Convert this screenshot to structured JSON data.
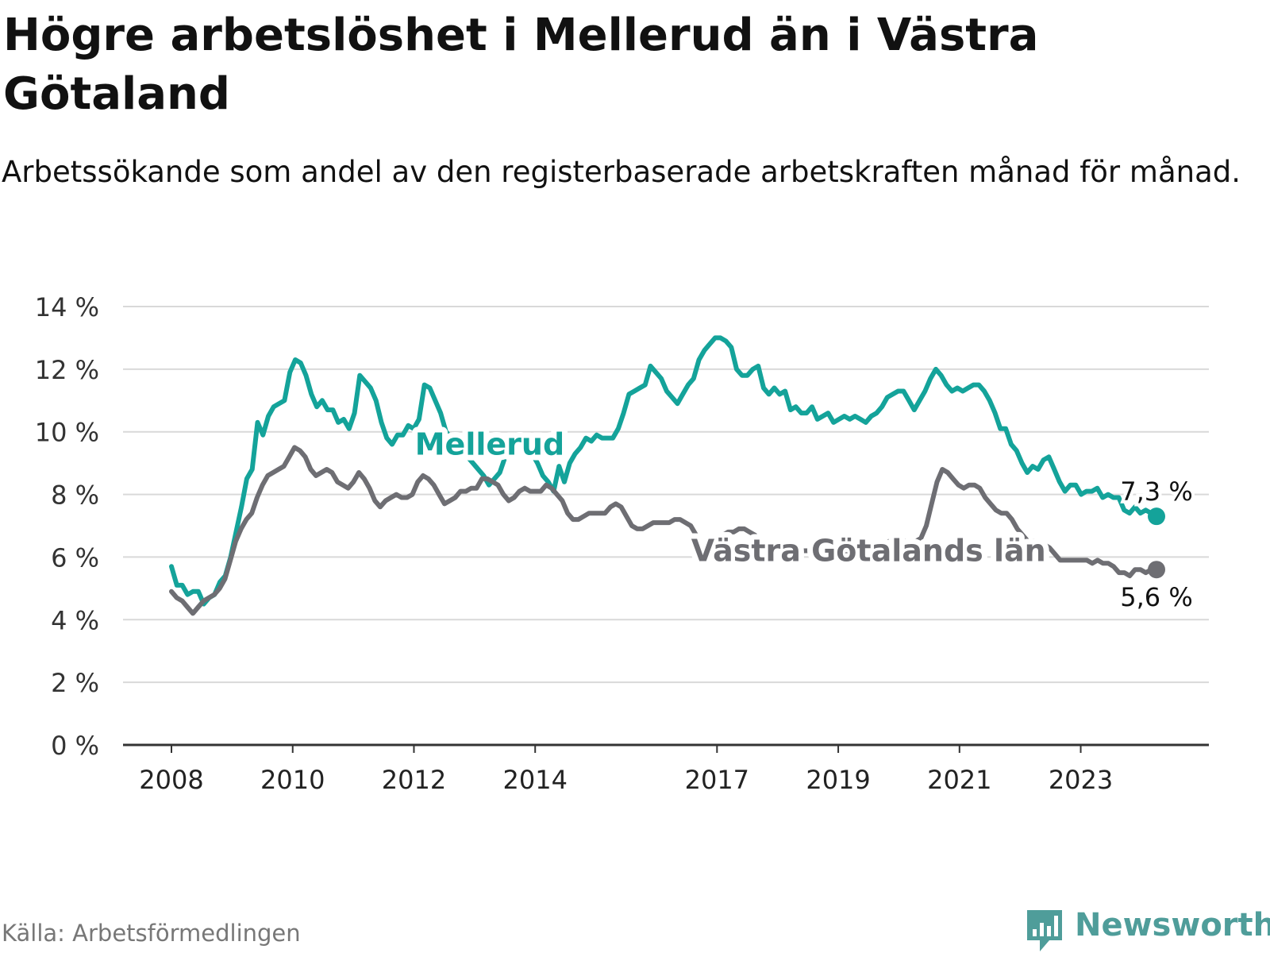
{
  "title": "Högre arbetslöshet i Mellerud än i Västra Götaland",
  "subtitle": "Arbetssökande som andel av den registerbaserade arbetskraften månad för månad.",
  "source": "Källa: Arbetsförmedlingen",
  "brand": "Newsworthy",
  "chart_data": {
    "type": "line",
    "x_start": 2008.0,
    "x_step_months": 1,
    "ylim": [
      0,
      14
    ],
    "y_ticks": [
      0,
      2,
      4,
      6,
      8,
      10,
      12,
      14
    ],
    "y_tick_labels": [
      "0 %",
      "2 %",
      "4 %",
      "6 %",
      "8 %",
      "10 %",
      "12 %",
      "14 %"
    ],
    "x_ticks": [
      2008,
      2010,
      2012,
      2014,
      2017,
      2019,
      2021,
      2023
    ],
    "x_tick_labels": [
      "2008",
      "2010",
      "2012",
      "2014",
      "2017",
      "2019",
      "2021",
      "2023"
    ],
    "grid": true,
    "series": [
      {
        "name": "Mellerud",
        "color": "#14a39a",
        "end_label": "7,3 %",
        "values": [
          5.7,
          5.1,
          5.1,
          4.8,
          4.9,
          4.9,
          4.5,
          4.7,
          4.8,
          5.2,
          5.4,
          6.0,
          6.8,
          7.6,
          8.5,
          8.8,
          10.3,
          9.9,
          10.5,
          10.8,
          10.9,
          11.0,
          11.9,
          12.3,
          12.2,
          11.8,
          11.2,
          10.8,
          11.0,
          10.7,
          10.7,
          10.3,
          10.4,
          10.1,
          10.6,
          11.8,
          11.6,
          11.4,
          11.0,
          10.3,
          9.8,
          9.6,
          9.9,
          9.9,
          10.2,
          10.1,
          10.4,
          11.5,
          11.4,
          11.0,
          10.6,
          10.0,
          9.8,
          9.5,
          9.4,
          9.2,
          9.0,
          8.8,
          8.6,
          8.3,
          8.5,
          8.7,
          9.2,
          9.5,
          9.7,
          9.6,
          9.5,
          9.3,
          9.0,
          8.6,
          8.4,
          8.1,
          8.9,
          8.4,
          9.0,
          9.3,
          9.5,
          9.8,
          9.7,
          9.9,
          9.8,
          9.8,
          9.8,
          10.1,
          10.6,
          11.2,
          11.3,
          11.4,
          11.5,
          12.1,
          11.9,
          11.7,
          11.3,
          11.1,
          10.9,
          11.2,
          11.5,
          11.7,
          12.3,
          12.6,
          12.8,
          13.0,
          13.0,
          12.9,
          12.7,
          12.0,
          11.8,
          11.8,
          12.0,
          12.1,
          11.4,
          11.2,
          11.4,
          11.2,
          11.3,
          10.7,
          10.8,
          10.6,
          10.6,
          10.8,
          10.4,
          10.5,
          10.6,
          10.3,
          10.4,
          10.5,
          10.4,
          10.5,
          10.4,
          10.3,
          10.5,
          10.6,
          10.8,
          11.1,
          11.2,
          11.3,
          11.3,
          11.0,
          10.7,
          11.0,
          11.3,
          11.7,
          12.0,
          11.8,
          11.5,
          11.3,
          11.4,
          11.3,
          11.4,
          11.5,
          11.5,
          11.3,
          11.0,
          10.6,
          10.1,
          10.1,
          9.6,
          9.4,
          9.0,
          8.7,
          8.9,
          8.8,
          9.1,
          9.2,
          8.8,
          8.4,
          8.1,
          8.3,
          8.3,
          8.0,
          8.1,
          8.1,
          8.2,
          7.9,
          8.0,
          7.9,
          7.9,
          7.5,
          7.4,
          7.6,
          7.4,
          7.5,
          7.4,
          7.3
        ]
      },
      {
        "name": "Västra Götalands län",
        "color": "#6e6e73",
        "end_label": "5,6 %",
        "values": [
          4.9,
          4.7,
          4.6,
          4.4,
          4.2,
          4.4,
          4.6,
          4.7,
          4.8,
          5.0,
          5.3,
          5.9,
          6.5,
          6.9,
          7.2,
          7.4,
          7.9,
          8.3,
          8.6,
          8.7,
          8.8,
          8.9,
          9.2,
          9.5,
          9.4,
          9.2,
          8.8,
          8.6,
          8.7,
          8.8,
          8.7,
          8.4,
          8.3,
          8.2,
          8.4,
          8.7,
          8.5,
          8.2,
          7.8,
          7.6,
          7.8,
          7.9,
          8.0,
          7.9,
          7.9,
          8.0,
          8.4,
          8.6,
          8.5,
          8.3,
          8.0,
          7.7,
          7.8,
          7.9,
          8.1,
          8.1,
          8.2,
          8.2,
          8.5,
          8.5,
          8.4,
          8.3,
          8.0,
          7.8,
          7.9,
          8.1,
          8.2,
          8.1,
          8.1,
          8.1,
          8.3,
          8.2,
          8.0,
          7.8,
          7.4,
          7.2,
          7.2,
          7.3,
          7.4,
          7.4,
          7.4,
          7.4,
          7.6,
          7.7,
          7.6,
          7.3,
          7.0,
          6.9,
          6.9,
          7.0,
          7.1,
          7.1,
          7.1,
          7.1,
          7.2,
          7.2,
          7.1,
          7.0,
          6.7,
          6.5,
          6.5,
          6.6,
          6.7,
          6.7,
          6.8,
          6.8,
          6.9,
          6.9,
          6.8,
          6.7,
          6.5,
          6.4,
          6.4,
          6.4,
          6.3,
          6.3,
          6.3,
          6.2,
          6.2,
          6.2,
          6.1,
          6.1,
          6.1,
          6.0,
          6.1,
          6.1,
          6.2,
          6.2,
          6.2,
          6.1,
          6.2,
          6.3,
          6.3,
          6.4,
          6.5,
          6.6,
          6.6,
          6.5,
          6.4,
          6.5,
          6.6,
          7.0,
          7.7,
          8.4,
          8.8,
          8.7,
          8.5,
          8.3,
          8.2,
          8.3,
          8.3,
          8.2,
          7.9,
          7.7,
          7.5,
          7.4,
          7.4,
          7.2,
          6.9,
          6.7,
          6.5,
          6.5,
          6.5,
          6.4,
          6.3,
          6.1,
          5.9,
          5.9,
          5.9,
          5.9,
          5.9,
          5.9,
          5.8,
          5.9,
          5.8,
          5.8,
          5.7,
          5.5,
          5.5,
          5.4,
          5.6,
          5.6,
          5.5,
          5.6,
          5.6
        ]
      }
    ],
    "series_labels": [
      {
        "text": "Mellerud",
        "x": 2013.25,
        "y": 9.6
      },
      {
        "text": "Västra Götalands län",
        "x": 2019.5,
        "y": 6.2
      }
    ]
  }
}
